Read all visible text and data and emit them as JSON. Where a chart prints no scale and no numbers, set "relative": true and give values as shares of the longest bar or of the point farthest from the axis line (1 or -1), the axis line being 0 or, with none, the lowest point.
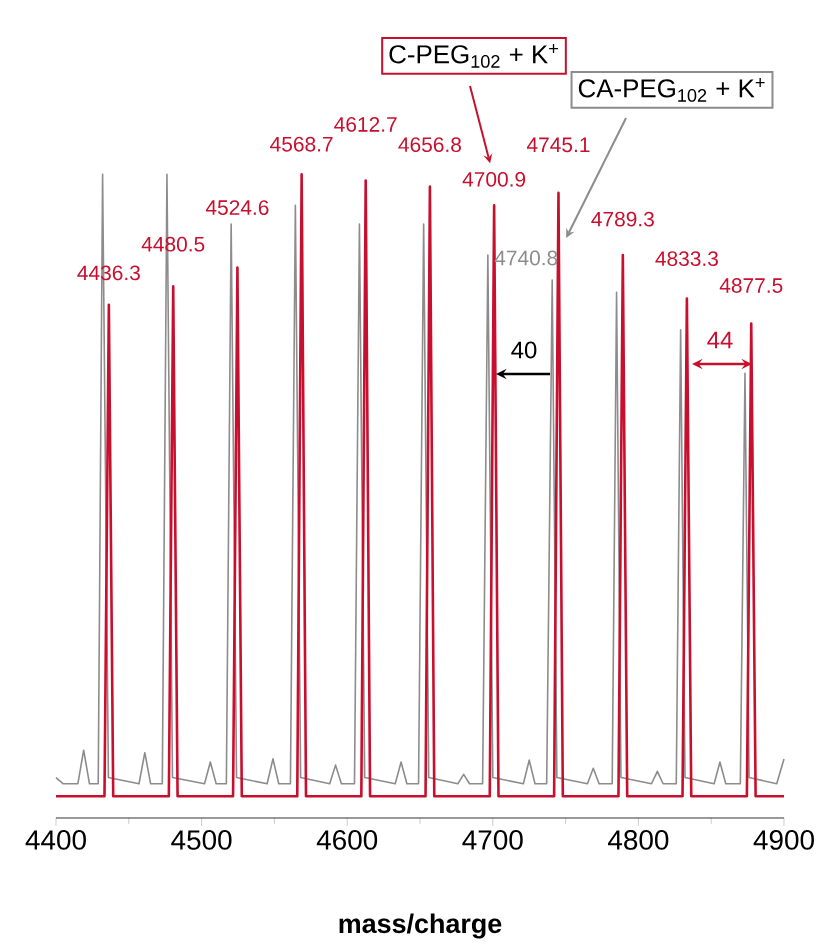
{
  "chart_data": {
    "type": "line",
    "relative": true,
    "xlabel": "mass/charge",
    "xlim": [
      4400,
      4900
    ],
    "xticks": [
      4400,
      {
        "value": 4450,
        "label": null
      },
      4500,
      {
        "value": 4550,
        "label": null
      },
      4600,
      {
        "value": 4650,
        "label": null
      },
      4700,
      {
        "value": 4750,
        "label": null
      },
      4800,
      {
        "value": 4850,
        "label": null
      },
      4900
    ],
    "series": [
      {
        "name": "CA-PEG$_{102}$ + K$^{+}$",
        "color": "#8c8c8c",
        "x": [
          4400,
          4405,
          4415,
          4419,
          4423,
          4429,
          4432.0,
          4436,
          4457,
          4461,
          4465,
          4473,
          4476.2,
          4480,
          4502,
          4506,
          4510,
          4517,
          4520.3,
          4524,
          4545,
          4549,
          4553,
          4561,
          4564.4,
          4568,
          4588,
          4592,
          4596,
          4605,
          4608.4,
          4612,
          4633,
          4637,
          4641,
          4649,
          4652.5,
          4656,
          4676,
          4680,
          4684,
          4693,
          4696.6,
          4700,
          4721,
          4725,
          4729,
          4737,
          4740.8,
          4744,
          4765,
          4769,
          4773,
          4782,
          4785.0,
          4788,
          4809,
          4813,
          4817,
          4826,
          4829.0,
          4832,
          4852,
          4856,
          4860,
          4870,
          4873.2,
          4876,
          4895,
          4900
        ],
        "values": [
          0.03,
          0.02,
          0.02,
          0.074,
          0.02,
          0.02,
          1.0,
          0.03,
          0.02,
          0.07,
          0.02,
          0.02,
          1.0,
          0.03,
          0.02,
          0.055,
          0.02,
          0.02,
          0.92,
          0.03,
          0.02,
          0.06,
          0.02,
          0.02,
          0.95,
          0.03,
          0.02,
          0.05,
          0.02,
          0.02,
          0.92,
          0.03,
          0.02,
          0.055,
          0.02,
          0.02,
          0.92,
          0.03,
          0.02,
          0.035,
          0.02,
          0.02,
          0.87,
          0.03,
          0.02,
          0.058,
          0.02,
          0.02,
          0.83,
          0.03,
          0.02,
          0.045,
          0.02,
          0.02,
          0.81,
          0.03,
          0.02,
          0.04,
          0.02,
          0.02,
          0.75,
          0.03,
          0.02,
          0.055,
          0.02,
          0.02,
          0.68,
          0.03,
          0.02,
          0.06
        ]
      },
      {
        "name": "C-PEG$_{102}$ + K$^{+}$",
        "color": "#c8102e",
        "x": [
          4400,
          4433.3,
          4436.3,
          4439.3,
          4477.5,
          4480.5,
          4483.5,
          4521.6,
          4524.6,
          4527.6,
          4565.7,
          4568.7,
          4571.7,
          4609.7,
          4612.7,
          4615.7,
          4653.8,
          4656.8,
          4659.8,
          4697.9,
          4700.9,
          4703.9,
          4742.1,
          4745.1,
          4748.1,
          4786.3,
          4789.3,
          4792.3,
          4830.3,
          4833.3,
          4836.3,
          4874.5,
          4877.5,
          4880.5,
          4900
        ],
        "values": [
          0,
          0,
          0.79,
          0,
          0,
          0.82,
          0,
          0,
          0.85,
          0,
          0,
          1.0,
          0,
          0,
          0.99,
          0,
          0,
          0.98,
          0,
          0,
          0.95,
          0,
          0,
          0.97,
          0,
          0,
          0.87,
          0,
          0,
          0.8,
          0,
          0,
          0.76,
          0,
          0
        ]
      }
    ],
    "annotations": [
      {
        "text": "4436.3",
        "x": 4436.3,
        "y": 0.79
      },
      {
        "text": "4480.5",
        "x": 4480.5,
        "y": 0.82
      },
      {
        "text": "4524.6",
        "x": 4524.6,
        "y": 0.85
      },
      {
        "text": "4568.7",
        "x": 4568.7,
        "y": 1.0
      },
      {
        "text": "4612.7",
        "x": 4612.7,
        "y": 0.99
      },
      {
        "text": "4656.8",
        "x": 4656.8,
        "y": 0.98
      },
      {
        "text": "4700.9",
        "x": 4700.9,
        "y": 0.95
      },
      {
        "text": "4745.1",
        "x": 4745.1,
        "y": 0.97
      },
      {
        "text": "4789.3",
        "x": 4789.3,
        "y": 0.87
      },
      {
        "text": "4833.3",
        "x": 4833.3,
        "y": 0.8
      },
      {
        "text": "4877.5",
        "x": 4877.5,
        "y": 0.76
      },
      {
        "text": "4740.8",
        "x": 4740.8,
        "y": 0.83
      },
      "40",
      "44"
    ]
  }
}
